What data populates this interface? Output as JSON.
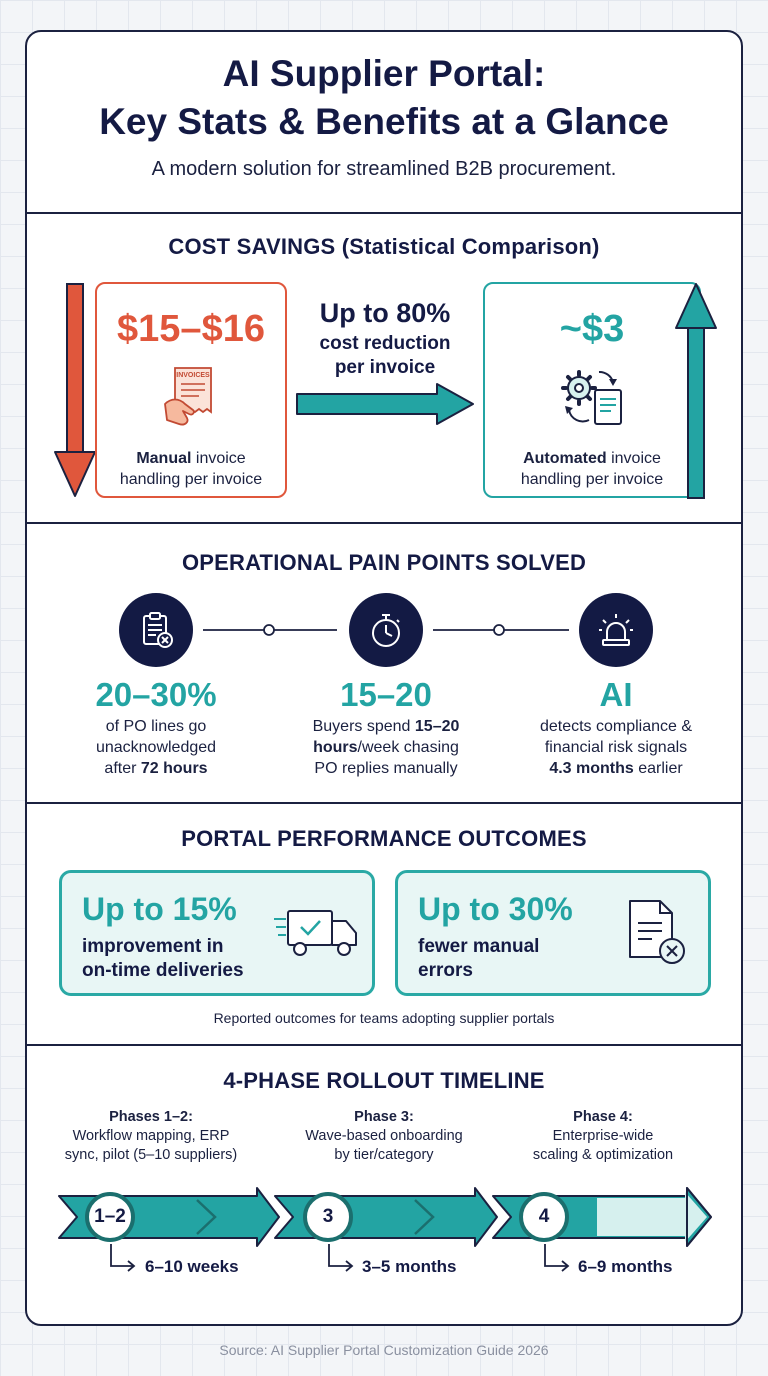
{
  "header": {
    "title_line1": "AI Supplier Portal:",
    "title_line2": "Key Stats & Benefits at a Glance",
    "subtitle": "A modern solution for streamlined B2B procurement."
  },
  "cost_savings": {
    "title": "COST SAVINGS (Statistical Comparison)",
    "manual": {
      "value": "$15–$16",
      "icon_label": "INVOICES",
      "caption_bold": "Manual",
      "caption_rest": " invoice",
      "caption_line2": "handling per invoice"
    },
    "reduction": {
      "headline": "Up to 80%",
      "line1": "cost reduction",
      "line2": "per invoice"
    },
    "automated": {
      "value": "~$3",
      "caption_bold": "Automated",
      "caption_rest": " invoice",
      "caption_line2": "handling per invoice"
    }
  },
  "pain_points": {
    "title": "OPERATIONAL PAIN POINTS SOLVED",
    "items": [
      {
        "icon": "clipboard-x-icon",
        "stat": "20–30%",
        "line1": "of PO lines go",
        "line2": "unacknowledged",
        "line3_plain": "after ",
        "line3_bold": "72 hours"
      },
      {
        "icon": "stopwatch-icon",
        "stat": "15–20",
        "line1_plain": "Buyers spend ",
        "line1_bold": "15–20",
        "line2_bold": "hours",
        "line2_plain": "/week chasing",
        "line3": "PO replies manually"
      },
      {
        "icon": "alarm-light-icon",
        "stat": "AI",
        "line1": "detects compliance &",
        "line2": "financial risk signals",
        "line3_bold": "4.3 months",
        "line3_plain": " earlier"
      }
    ]
  },
  "outcomes": {
    "title": "PORTAL PERFORMANCE OUTCOMES",
    "items": [
      {
        "headline": "Up to 15%",
        "line1": "improvement in",
        "line2": "on-time deliveries",
        "icon": "delivery-truck-icon"
      },
      {
        "headline": "Up to 30%",
        "line1": "fewer manual",
        "line2": "errors",
        "icon": "document-error-icon"
      }
    ],
    "note": "Reported outcomes for teams adopting supplier portals"
  },
  "timeline": {
    "title": "4-PHASE ROLLOUT TIMELINE",
    "phases": [
      {
        "label": "Phases 1–2:",
        "line1": "Workflow mapping, ERP",
        "line2": "sync, pilot (5–10 suppliers)",
        "badge": "1–2",
        "duration": "6–10 weeks"
      },
      {
        "label": "Phase 3:",
        "line1": "Wave-based onboarding",
        "line2": "by tier/category",
        "badge": "3",
        "duration": "3–5 months"
      },
      {
        "label": "Phase 4:",
        "line1": "Enterprise-wide",
        "line2": "scaling & optimization",
        "badge": "4",
        "duration": "6–9 months"
      }
    ]
  },
  "source": "Source: AI Supplier Portal Customization Guide 2026",
  "colors": {
    "navy": "#141a44",
    "teal": "#23a4a3",
    "coral": "#e0573c",
    "light_teal": "#e8f6f5"
  }
}
